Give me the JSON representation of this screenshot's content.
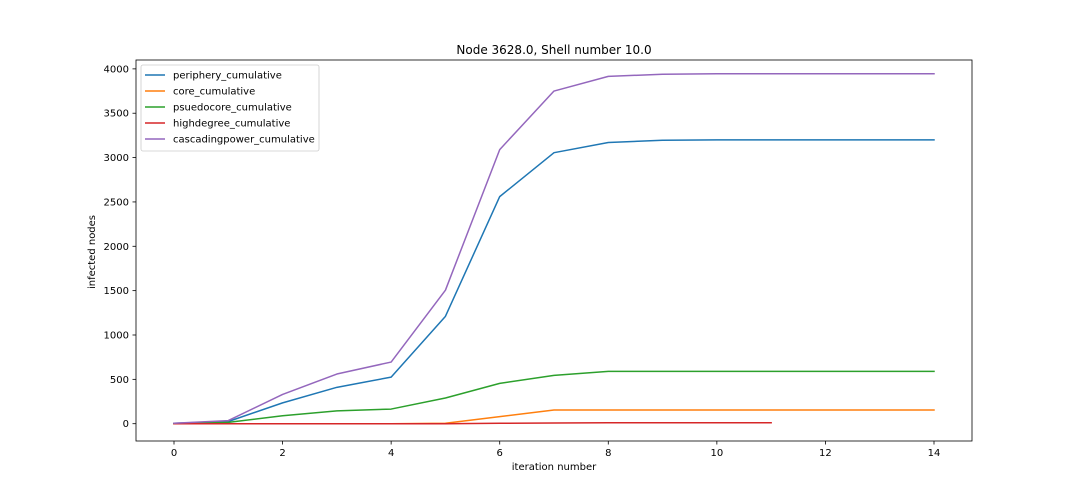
{
  "chart_data": {
    "type": "line",
    "title": "Node 3628.0, Shell number 10.0",
    "xlabel": "iteration number",
    "ylabel": "infected nodes",
    "xlim": [
      -0.7,
      14.7
    ],
    "ylim": [
      -195,
      4100
    ],
    "xticks": [
      0,
      2,
      4,
      6,
      8,
      10,
      12,
      14
    ],
    "yticks": [
      0,
      500,
      1000,
      1500,
      2000,
      2500,
      3000,
      3500,
      4000
    ],
    "grid": false,
    "legend_position": "top-left",
    "series": [
      {
        "name": "periphery_cumulative",
        "color": "#1f77b4",
        "x": [
          0,
          1,
          2,
          3,
          4,
          5,
          6,
          7,
          8,
          9,
          10,
          11,
          12,
          13,
          14
        ],
        "y": [
          5,
          25,
          235,
          410,
          525,
          1210,
          2560,
          3055,
          3170,
          3195,
          3200,
          3200,
          3200,
          3200,
          3200
        ]
      },
      {
        "name": "core_cumulative",
        "color": "#ff7f0e",
        "x": [
          0,
          1,
          2,
          3,
          4,
          5,
          6,
          7,
          8,
          9,
          10,
          11,
          12,
          13,
          14
        ],
        "y": [
          0,
          0,
          0,
          0,
          0,
          5,
          80,
          155,
          155,
          155,
          155,
          155,
          155,
          155,
          155
        ]
      },
      {
        "name": "psuedocore_cumulative",
        "color": "#2ca02c",
        "x": [
          0,
          1,
          2,
          3,
          4,
          5,
          6,
          7,
          8,
          9,
          10,
          11,
          12,
          13,
          14
        ],
        "y": [
          0,
          15,
          90,
          145,
          165,
          290,
          455,
          545,
          590,
          590,
          590,
          590,
          590,
          590,
          590
        ]
      },
      {
        "name": "highdegree_cumulative",
        "color": "#d62728",
        "x": [
          0,
          1,
          2,
          3,
          4,
          5,
          6,
          7,
          8,
          9,
          10,
          11
        ],
        "y": [
          0,
          0,
          0,
          0,
          0,
          0,
          5,
          8,
          10,
          10,
          10,
          10
        ]
      },
      {
        "name": "cascadingpower_cumulative",
        "color": "#9467bd",
        "x": [
          0,
          1,
          2,
          3,
          4,
          5,
          6,
          7,
          8,
          9,
          10,
          11,
          12,
          13,
          14
        ],
        "y": [
          5,
          35,
          330,
          560,
          695,
          1505,
          3090,
          3750,
          3915,
          3940,
          3945,
          3945,
          3945,
          3945,
          3945
        ]
      }
    ]
  }
}
